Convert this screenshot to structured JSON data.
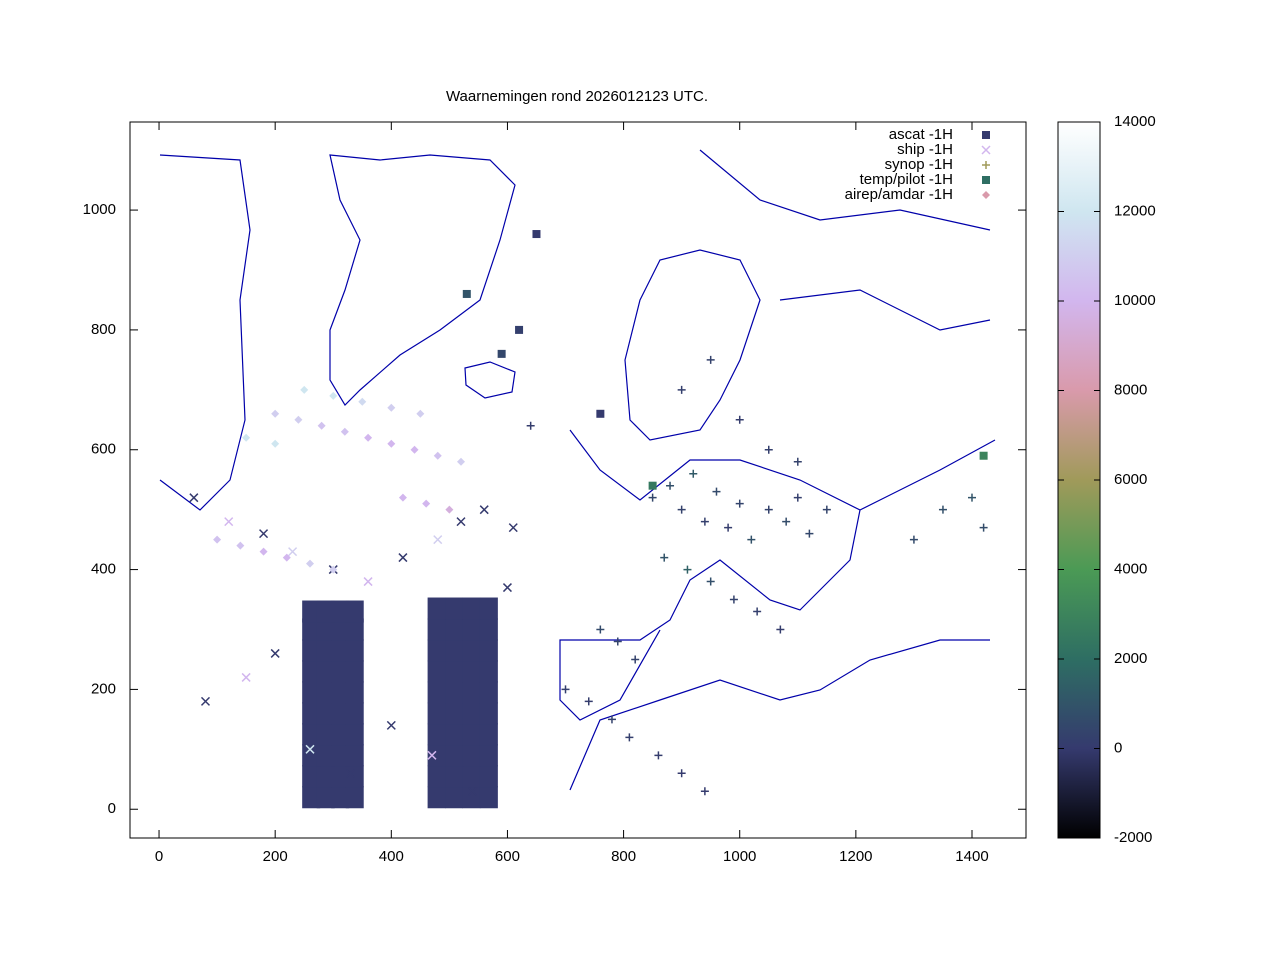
{
  "chart_data": {
    "type": "scatter",
    "title": "Waarnemingen rond 2026012123 UTC.",
    "xlim": [
      -50,
      1493
    ],
    "ylim": [
      -48,
      1147
    ],
    "xticks": [
      0,
      200,
      400,
      600,
      800,
      1000,
      1200,
      1400
    ],
    "yticks": [
      0,
      200,
      400,
      600,
      800,
      1000
    ],
    "cblim": [
      -2000,
      14000
    ],
    "cbticks": [
      -2000,
      0,
      2000,
      4000,
      6000,
      8000,
      10000,
      12000,
      14000
    ],
    "palette_colors": [
      "#000000",
      "#353a6e",
      "#2e6e63",
      "#4b9a55",
      "#a09a5a",
      "#d99aab",
      "#d2b6ee",
      "#cfe6f0",
      "#ffffff"
    ],
    "legend": "top right",
    "series": [
      {
        "name": "ascat -1H",
        "marker": "square",
        "color": "#353a6e",
        "x": [
          262,
          287,
          312,
          337,
          262,
          287,
          312,
          337,
          262,
          287,
          312,
          337,
          262,
          287,
          312,
          337,
          262,
          287,
          312,
          337,
          262,
          287,
          312,
          337,
          262,
          287,
          312,
          337,
          262,
          287,
          312,
          337,
          262,
          287,
          312,
          337,
          262,
          287,
          312,
          337,
          478,
          508,
          538,
          568,
          478,
          508,
          538,
          568,
          478,
          508,
          538,
          568,
          478,
          508,
          538,
          568,
          478,
          508,
          538,
          568,
          478,
          508,
          538,
          568,
          478,
          508,
          538,
          568,
          478,
          508,
          538,
          568,
          478,
          508,
          538,
          568,
          478,
          508,
          538,
          568
        ],
        "values": [
          20,
          20,
          20,
          20,
          55,
          55,
          55,
          55,
          90,
          90,
          90,
          90,
          125,
          125,
          125,
          125,
          160,
          160,
          160,
          160,
          195,
          195,
          195,
          195,
          230,
          230,
          230,
          230,
          265,
          265,
          265,
          265,
          300,
          300,
          300,
          300,
          330,
          330,
          330,
          330,
          20,
          20,
          20,
          20,
          55,
          55,
          55,
          55,
          90,
          90,
          90,
          90,
          125,
          125,
          125,
          125,
          160,
          160,
          160,
          160,
          195,
          195,
          195,
          195,
          230,
          230,
          230,
          230,
          265,
          265,
          265,
          265,
          300,
          300,
          300,
          300,
          335,
          335,
          335,
          335
        ],
        "z": [
          0,
          0,
          0,
          0,
          0,
          0,
          0,
          0,
          0,
          0,
          0,
          0,
          0,
          0,
          0,
          0,
          0,
          0,
          0,
          0,
          0,
          0,
          0,
          0,
          0,
          0,
          0,
          0,
          0,
          0,
          0,
          0,
          0,
          0,
          0,
          0,
          0,
          0,
          0,
          0,
          0,
          0,
          0,
          0,
          0,
          0,
          0,
          0,
          0,
          0,
          0,
          0,
          0,
          0,
          0,
          0,
          0,
          0,
          0,
          0,
          0,
          0,
          0,
          0,
          0,
          0,
          0,
          0,
          0,
          0,
          0,
          0,
          0,
          0,
          0,
          0,
          0,
          0,
          0,
          0
        ]
      },
      {
        "name": "ship -1H",
        "marker": "cross",
        "color": "#d2b6ee",
        "x": [
          60,
          120,
          180,
          230,
          300,
          360,
          420,
          480,
          520,
          560,
          610,
          80,
          150,
          200,
          260,
          330,
          400,
          470,
          540,
          600
        ],
        "values": [
          520,
          480,
          460,
          430,
          400,
          380,
          420,
          450,
          480,
          500,
          470,
          180,
          220,
          260,
          100,
          60,
          140,
          90,
          30,
          370
        ],
        "z": [
          0,
          10000,
          0,
          11000,
          0,
          10000,
          0,
          11000,
          0,
          0,
          0,
          0,
          10000,
          0,
          12000,
          0,
          0,
          10000,
          0,
          0
        ]
      },
      {
        "name": "synop -1H",
        "marker": "plus",
        "color": "#a09a5a",
        "x": [
          850,
          880,
          900,
          920,
          940,
          960,
          980,
          1000,
          1020,
          1050,
          1080,
          1100,
          1120,
          1150,
          870,
          910,
          950,
          990,
          1030,
          1070,
          760,
          790,
          820,
          700,
          740,
          780,
          810,
          860,
          900,
          940,
          1300,
          1350,
          1400,
          1420,
          900,
          950,
          1000,
          1050,
          1100,
          640
        ],
        "values": [
          520,
          540,
          500,
          560,
          480,
          530,
          470,
          510,
          450,
          500,
          480,
          520,
          460,
          500,
          420,
          400,
          380,
          350,
          330,
          300,
          300,
          280,
          250,
          200,
          180,
          150,
          120,
          90,
          60,
          30,
          450,
          500,
          520,
          470,
          700,
          750,
          650,
          600,
          580,
          640
        ],
        "z": [
          500,
          800,
          300,
          1200,
          200,
          600,
          100,
          400,
          900,
          300,
          700,
          200,
          500,
          400,
          1000,
          1500,
          800,
          300,
          200,
          100,
          600,
          400,
          300,
          200,
          100,
          300,
          200,
          100,
          50,
          20,
          600,
          800,
          1000,
          700,
          200,
          300,
          100,
          200,
          300,
          100
        ]
      },
      {
        "name": "temp/pilot -1H",
        "marker": "square",
        "color": "#2e6e63",
        "x": [
          650,
          590,
          760,
          620,
          1420,
          850,
          530
        ],
        "values": [
          960,
          760,
          660,
          800,
          590,
          540,
          860
        ],
        "z": [
          0,
          500,
          0,
          200,
          3000,
          2500,
          1000
        ]
      },
      {
        "name": "airep/amdar -1H",
        "marker": "diamond",
        "color": "#d99aab",
        "x": [
          200,
          240,
          280,
          320,
          360,
          400,
          440,
          480,
          520,
          250,
          300,
          350,
          400,
          450,
          100,
          140,
          180,
          220,
          260,
          300,
          150,
          200,
          420,
          460,
          500
        ],
        "values": [
          660,
          650,
          640,
          630,
          620,
          610,
          600,
          590,
          580,
          700,
          690,
          680,
          670,
          660,
          450,
          440,
          430,
          420,
          410,
          400,
          620,
          610,
          520,
          510,
          500
        ],
        "z": [
          11000,
          11000,
          10500,
          10500,
          10000,
          10000,
          10000,
          10500,
          11000,
          12000,
          12000,
          11500,
          11000,
          11000,
          10500,
          10500,
          10000,
          10000,
          11000,
          11000,
          12000,
          12000,
          10000,
          10000,
          9500
        ]
      }
    ]
  }
}
